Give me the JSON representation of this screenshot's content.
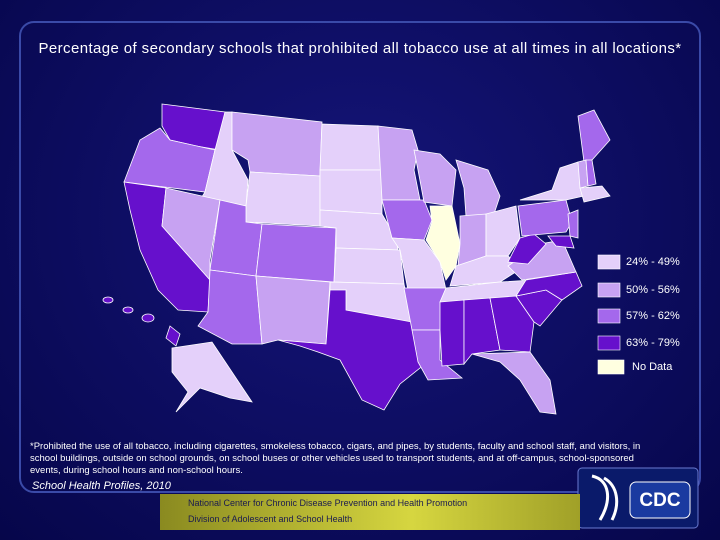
{
  "title": "Percentage of secondary schools that prohibited all tobacco use at all times in all locations*",
  "legend": [
    {
      "label": "24% - 49%",
      "color": "#e4d0fa"
    },
    {
      "label": "50% - 56%",
      "color": "#c7a2f2"
    },
    {
      "label": "57% - 62%",
      "color": "#a468ec"
    },
    {
      "label": "63% - 79%",
      "color": "#6610cc"
    },
    {
      "label": "No Data",
      "color": "#ffffe0"
    }
  ],
  "footnote": "*Prohibited the use of all tobacco, including cigarettes, smokeless tobacco, cigars, and pipes, by students, faculty and school staff, and visitors, in school buildings, outside on school grounds, on school buses or other vehicles used to transport students, and at off-campus, school-sponsored events, during school hours and non-school hours.",
  "source": "School Health Profiles, 2010",
  "footer": [
    "National Center for Chronic Disease Prevention and Health Promotion",
    "Division of Adolescent and School Health"
  ],
  "logo": "CDC"
}
